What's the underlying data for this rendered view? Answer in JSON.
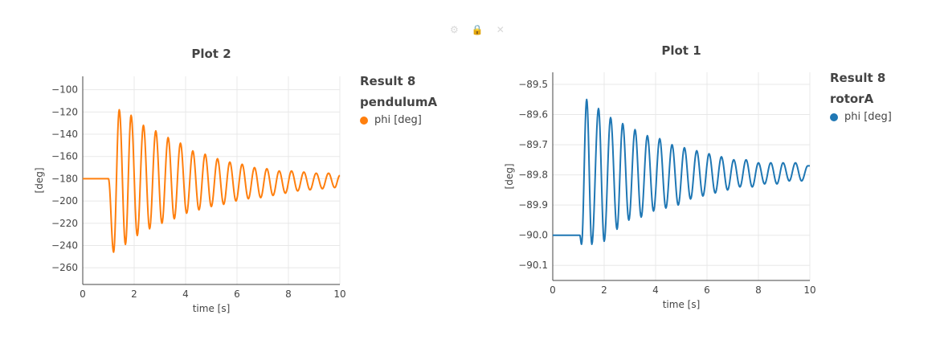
{
  "toolbar": {
    "icons": [
      "wrench-icon",
      "lock-icon",
      "close-icon"
    ],
    "glyphs": [
      "⚙",
      "🔒",
      "✕"
    ]
  },
  "chart_data": [
    {
      "type": "line",
      "title": "Plot 2",
      "xlabel": "time [s]",
      "ylabel": "[deg]",
      "xlim": [
        0,
        10
      ],
      "ylim": [
        -275,
        -88
      ],
      "xticks": [
        0,
        2,
        4,
        6,
        8,
        10
      ],
      "yticks": [
        -100,
        -120,
        -140,
        -160,
        -180,
        -200,
        -220,
        -240,
        -260
      ],
      "grid": true,
      "legend_position": "right",
      "legend": {
        "group": "Result 8",
        "subgroup": "pendulumA",
        "entries": [
          "phi [deg]"
        ]
      },
      "series": [
        {
          "name": "phi [deg]",
          "color": "#ff7f0e",
          "initial_value": -180,
          "start_time": 1.0,
          "extrema": [
            [
              0,
              -180
            ],
            [
              1.0,
              -180
            ],
            [
              1.2,
              -246
            ],
            [
              1.42,
              -118
            ],
            [
              1.66,
              -239
            ],
            [
              1.88,
              -123
            ],
            [
              2.12,
              -231
            ],
            [
              2.36,
              -132
            ],
            [
              2.6,
              -225
            ],
            [
              2.84,
              -137
            ],
            [
              3.08,
              -220
            ],
            [
              3.32,
              -143
            ],
            [
              3.56,
              -216
            ],
            [
              3.8,
              -148
            ],
            [
              4.04,
              -211
            ],
            [
              4.28,
              -155
            ],
            [
              4.52,
              -208
            ],
            [
              4.76,
              -158
            ],
            [
              5.0,
              -205
            ],
            [
              5.24,
              -162
            ],
            [
              5.48,
              -203
            ],
            [
              5.72,
              -165
            ],
            [
              5.96,
              -200
            ],
            [
              6.2,
              -167
            ],
            [
              6.44,
              -198
            ],
            [
              6.68,
              -170
            ],
            [
              6.92,
              -197
            ],
            [
              7.16,
              -171
            ],
            [
              7.4,
              -195
            ],
            [
              7.64,
              -173
            ],
            [
              7.88,
              -193
            ],
            [
              8.12,
              -173
            ],
            [
              8.36,
              -191
            ],
            [
              8.6,
              -174
            ],
            [
              8.84,
              -190
            ],
            [
              9.08,
              -175
            ],
            [
              9.32,
              -189
            ],
            [
              9.56,
              -175
            ],
            [
              9.8,
              -188
            ],
            [
              10.0,
              -177
            ]
          ]
        }
      ]
    },
    {
      "type": "line",
      "title": "Plot 1",
      "xlabel": "time [s]",
      "ylabel": "[deg]",
      "xlim": [
        0,
        10
      ],
      "ylim": [
        -90.15,
        -89.46
      ],
      "xticks": [
        0,
        2,
        4,
        6,
        8,
        10
      ],
      "yticks": [
        -89.5,
        -89.6,
        -89.7,
        -89.8,
        -89.9,
        -90.0,
        -90.1
      ],
      "ytick_labels": [
        "−89.5",
        "−89.6",
        "−89.7",
        "−89.8",
        "−89.9",
        "−90.0",
        "−90.1"
      ],
      "grid": true,
      "legend_position": "right",
      "legend": {
        "group": "Result 8",
        "subgroup": "rotorA",
        "entries": [
          "phi [deg]"
        ]
      },
      "series": [
        {
          "name": "phi [deg]",
          "color": "#1f77b4",
          "initial_value": -90.0,
          "start_time": 1.0,
          "extrema": [
            [
              0,
              -90.0
            ],
            [
              1.05,
              -90.0
            ],
            [
              1.12,
              -90.03
            ],
            [
              1.32,
              -89.55
            ],
            [
              1.52,
              -90.03
            ],
            [
              1.78,
              -89.58
            ],
            [
              2.0,
              -90.02
            ],
            [
              2.25,
              -89.61
            ],
            [
              2.5,
              -89.98
            ],
            [
              2.72,
              -89.63
            ],
            [
              2.96,
              -89.95
            ],
            [
              3.2,
              -89.65
            ],
            [
              3.44,
              -89.94
            ],
            [
              3.68,
              -89.67
            ],
            [
              3.92,
              -89.92
            ],
            [
              4.16,
              -89.68
            ],
            [
              4.4,
              -89.91
            ],
            [
              4.64,
              -89.7
            ],
            [
              4.88,
              -89.9
            ],
            [
              5.12,
              -89.71
            ],
            [
              5.36,
              -89.88
            ],
            [
              5.6,
              -89.72
            ],
            [
              5.84,
              -89.87
            ],
            [
              6.08,
              -89.73
            ],
            [
              6.32,
              -89.86
            ],
            [
              6.56,
              -89.74
            ],
            [
              6.8,
              -89.85
            ],
            [
              7.04,
              -89.75
            ],
            [
              7.28,
              -89.84
            ],
            [
              7.52,
              -89.75
            ],
            [
              7.76,
              -89.84
            ],
            [
              8.0,
              -89.76
            ],
            [
              8.24,
              -89.83
            ],
            [
              8.48,
              -89.76
            ],
            [
              8.72,
              -89.83
            ],
            [
              8.96,
              -89.76
            ],
            [
              9.2,
              -89.82
            ],
            [
              9.44,
              -89.76
            ],
            [
              9.68,
              -89.82
            ],
            [
              9.92,
              -89.77
            ],
            [
              10.0,
              -89.77
            ]
          ]
        }
      ]
    }
  ]
}
